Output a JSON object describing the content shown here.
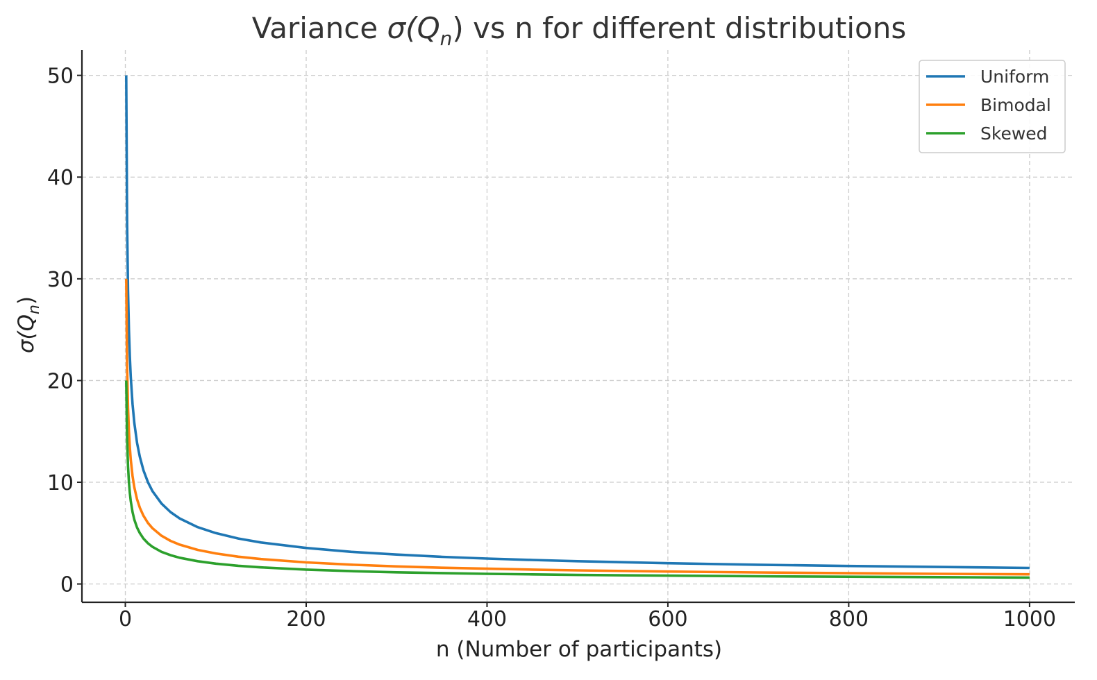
{
  "chart_data": {
    "type": "line",
    "title_parts": [
      "Variance ",
      "σ(",
      "Q",
      "n",
      ")",
      " vs n for different distributions"
    ],
    "xlabel": "n (Number of participants)",
    "ylabel_parts": [
      "σ(",
      "Q",
      "n",
      ")"
    ],
    "xlim": [
      -48,
      1050
    ],
    "ylim": [
      -1.8,
      52.5
    ],
    "xticks": [
      0,
      200,
      400,
      600,
      800,
      1000
    ],
    "yticks": [
      0,
      10,
      20,
      30,
      40,
      50
    ],
    "xtick_labels": [
      "0",
      "200",
      "400",
      "600",
      "800",
      "1000"
    ],
    "ytick_labels": [
      "0",
      "10",
      "20",
      "30",
      "40",
      "50"
    ],
    "grid": true,
    "legend_position": "top-right",
    "x": [
      1,
      2,
      3,
      4,
      5,
      6,
      8,
      10,
      13,
      16,
      20,
      25,
      30,
      40,
      50,
      60,
      80,
      100,
      125,
      150,
      200,
      250,
      300,
      350,
      400,
      450,
      500,
      600,
      700,
      800,
      900,
      1000
    ],
    "series": [
      {
        "name": "Uniform",
        "color": "#1f77b4",
        "values": [
          50.0,
          35.36,
          28.87,
          25.0,
          22.36,
          20.41,
          17.68,
          15.81,
          13.87,
          12.5,
          11.18,
          10.0,
          9.13,
          7.91,
          7.07,
          6.45,
          5.59,
          5.0,
          4.47,
          4.08,
          3.54,
          3.16,
          2.89,
          2.67,
          2.5,
          2.36,
          2.24,
          2.04,
          1.89,
          1.77,
          1.67,
          1.58
        ]
      },
      {
        "name": "Bimodal",
        "color": "#ff7f0e",
        "values": [
          30.0,
          21.21,
          17.32,
          15.0,
          13.42,
          12.25,
          10.61,
          9.49,
          8.32,
          7.5,
          6.71,
          6.0,
          5.48,
          4.74,
          4.24,
          3.87,
          3.35,
          3.0,
          2.68,
          2.45,
          2.12,
          1.9,
          1.73,
          1.6,
          1.5,
          1.41,
          1.34,
          1.22,
          1.13,
          1.06,
          1.0,
          0.95
        ]
      },
      {
        "name": "Skewed",
        "color": "#2ca02c",
        "values": [
          20.0,
          14.14,
          11.55,
          10.0,
          8.94,
          8.16,
          7.07,
          6.32,
          5.55,
          5.0,
          4.47,
          4.0,
          3.65,
          3.16,
          2.83,
          2.58,
          2.24,
          2.0,
          1.79,
          1.63,
          1.41,
          1.26,
          1.15,
          1.07,
          1.0,
          0.94,
          0.89,
          0.82,
          0.76,
          0.71,
          0.67,
          0.63
        ]
      }
    ]
  }
}
